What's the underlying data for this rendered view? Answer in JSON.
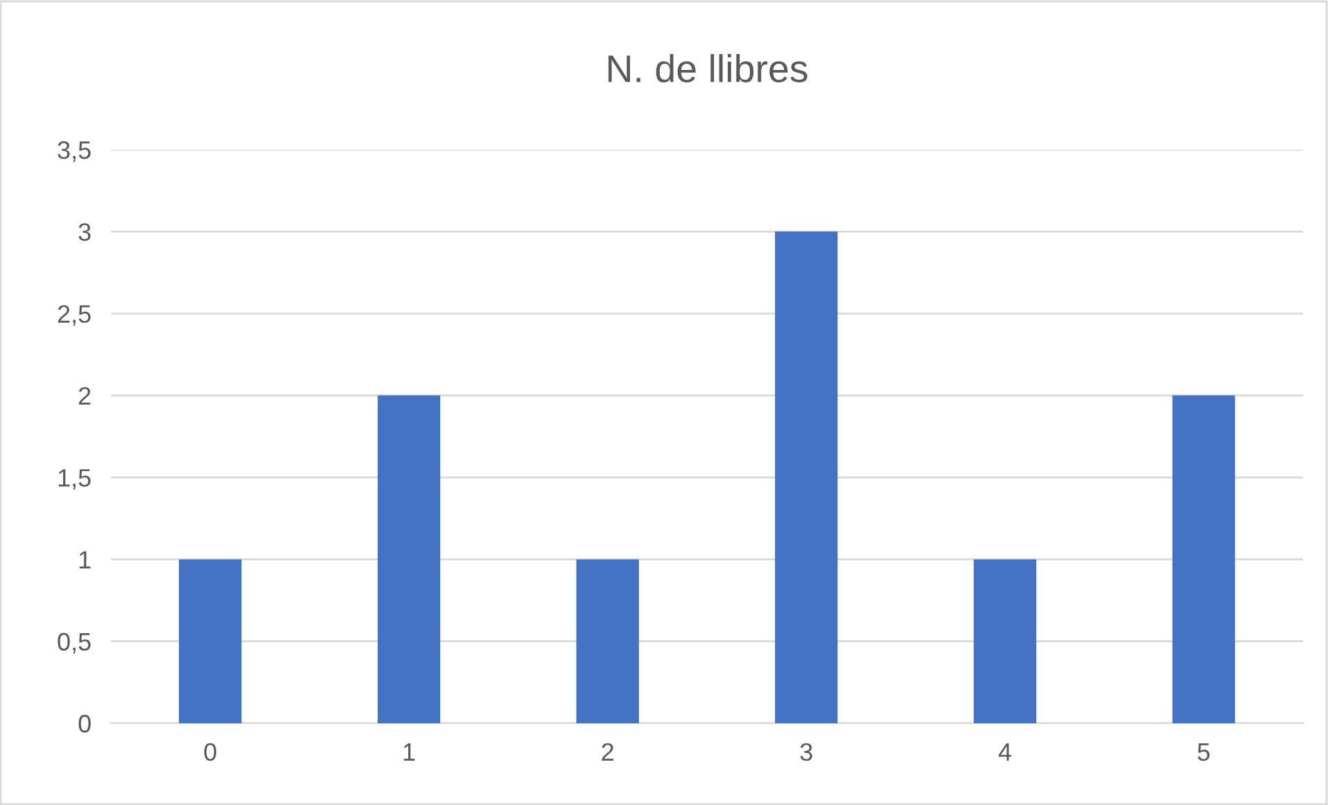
{
  "chart_data": {
    "type": "bar",
    "title": "N. de llibres",
    "categories": [
      "0",
      "1",
      "2",
      "3",
      "4",
      "5"
    ],
    "values": [
      1,
      2,
      1,
      3,
      1,
      2
    ],
    "color": "#4472c4",
    "ylim": [
      0,
      3.5
    ],
    "yticks": [
      0,
      {
        "value": 0.5,
        "label": "0,5"
      },
      1,
      {
        "value": 1.5,
        "label": "1,5"
      },
      2,
      {
        "value": 2.5,
        "label": "2,5"
      },
      3,
      {
        "value": 3.5,
        "label": "3,5"
      }
    ],
    "grid": "y",
    "legend": false
  }
}
